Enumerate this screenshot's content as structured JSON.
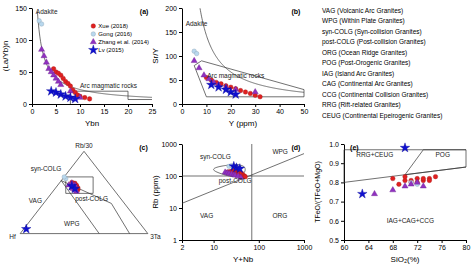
{
  "chart_data": [
    {
      "type": "scatter",
      "title": "(a)",
      "x_label": "Ybn",
      "y_label": "(La/Yb)n",
      "xlim": [
        0,
        25
      ],
      "ylim": [
        0,
        150
      ],
      "xticks": [
        0,
        5,
        10,
        15,
        20,
        25
      ],
      "yticks": [
        0,
        50,
        100,
        150
      ],
      "legend": "upper right",
      "series": [
        {
          "name": "Xue (2018)",
          "color": "#e02020",
          "marker": "circle",
          "x": [
            4.5,
            5.0,
            5.5,
            6.0,
            6.5,
            7.0,
            7.5,
            8.0,
            8.5,
            9.0,
            9.5,
            10.0,
            11.0,
            12.0
          ],
          "values": [
            55,
            50,
            48,
            45,
            40,
            35,
            32,
            28,
            22,
            18,
            14,
            12,
            10,
            8
          ]
        },
        {
          "name": "Gong (2016)",
          "color": "#b8d8ee",
          "marker": "circle",
          "x": [
            1.5,
            2.0
          ],
          "values": [
            130,
            125
          ]
        },
        {
          "name": "Zhang et al. (2014)",
          "color": "#9030c0",
          "marker": "triangle",
          "x": [
            2.0,
            2.5,
            3.0,
            3.5,
            4.0,
            4.5,
            5.0,
            5.5,
            6.0,
            8.0,
            10.0
          ],
          "values": [
            85,
            75,
            65,
            55,
            50,
            45,
            40,
            35,
            30,
            20,
            10
          ]
        },
        {
          "name": "Lv (2015)",
          "color": "#1010d0",
          "marker": "star",
          "x": [
            4.0,
            5.0,
            6.0,
            7.0,
            8.0,
            9.0
          ],
          "values": [
            20,
            18,
            15,
            12,
            10,
            8
          ]
        }
      ],
      "annotations": [
        "Adakite",
        "Arc magmatic rocks"
      ]
    },
    {
      "type": "scatter",
      "title": "(b)",
      "x_label": "Y (ppm)",
      "y_label": "Sr/Y",
      "xlim": [
        0,
        50
      ],
      "ylim": [
        0,
        200
      ],
      "xticks": [
        0,
        10,
        20,
        30,
        40,
        50
      ],
      "yticks": [
        0,
        50,
        100,
        150,
        200
      ],
      "series": [
        {
          "color": "#e02020",
          "marker": "circle",
          "x": [
            10,
            12,
            14,
            16,
            18,
            20,
            22,
            24,
            26,
            28,
            30,
            32
          ],
          "values": [
            55,
            50,
            45,
            42,
            38,
            35,
            32,
            28,
            25,
            22,
            18,
            15
          ]
        },
        {
          "color": "#b8d8ee",
          "marker": "circle",
          "x": [
            5,
            6
          ],
          "values": [
            110,
            105
          ]
        },
        {
          "color": "#9030c0",
          "marker": "triangle",
          "x": [
            5,
            7,
            9,
            11,
            13,
            15,
            18,
            22,
            30
          ],
          "values": [
            90,
            75,
            60,
            52,
            45,
            40,
            35,
            30,
            25
          ]
        },
        {
          "color": "#1010d0",
          "marker": "star",
          "x": [
            12,
            15,
            18,
            20,
            22
          ],
          "values": [
            40,
            35,
            30,
            25,
            20
          ]
        }
      ],
      "annotations": [
        "Adakite",
        "Arc magmatic rocks"
      ]
    },
    {
      "type": "scatter",
      "title": "(c)",
      "tick_labels": false,
      "xlim": [
        0,
        1
      ],
      "ylim": [
        -0.05,
        1.0
      ],
      "series": [
        {
          "color": "#e02020",
          "marker": "circle",
          "x": [
            0.42,
            0.44,
            0.43,
            0.45,
            0.44,
            0.43,
            0.46,
            0.44,
            0.45,
            0.43,
            0.46,
            0.44,
            0.45,
            0.43
          ],
          "values": [
            0.58,
            0.55,
            0.52,
            0.54,
            0.57,
            0.53,
            0.5,
            0.52,
            0.55,
            0.56,
            0.52,
            0.54,
            0.51,
            0.57
          ]
        },
        {
          "color": "#b8d8ee",
          "marker": "circle",
          "x": [
            0.38,
            0.37
          ],
          "values": [
            0.62,
            0.64
          ]
        },
        {
          "color": "#9030c0",
          "marker": "triangle",
          "x": [
            0.4,
            0.42,
            0.44,
            0.43,
            0.45,
            0.44,
            0.42,
            0.43
          ],
          "values": [
            0.55,
            0.52,
            0.5,
            0.53,
            0.48,
            0.55,
            0.57,
            0.51
          ]
        },
        {
          "color": "#1010d0",
          "marker": "star",
          "x": [
            0.42,
            0.44,
            0.12
          ],
          "values": [
            0.54,
            0.51,
            0.07
          ]
        }
      ],
      "annotations": [
        "Rb/30",
        "Hf",
        "3Ta",
        "syn-COLG",
        "VAG",
        "post-COLG",
        "WPG"
      ]
    },
    {
      "type": "scatter",
      "title": "(d)",
      "x_label": "Y+Nb",
      "y_label": "Rb (ppm)",
      "log": true,
      "xlim": [
        2,
        1000
      ],
      "ylim": [
        1,
        1000
      ],
      "xticks": [
        2,
        10,
        100,
        1000
      ],
      "yticks": [
        1,
        10,
        100,
        1000
      ],
      "series": [
        {
          "color": "#e02020",
          "marker": "circle",
          "x": [
            20,
            22,
            25,
            28,
            30,
            32,
            35,
            38,
            40,
            42,
            45,
            48,
            50
          ],
          "values": [
            130,
            135,
            140,
            145,
            150,
            120,
            125,
            130,
            110,
            120,
            105,
            100,
            95
          ]
        },
        {
          "color": "#b8d8ee",
          "marker": "circle",
          "x": [
            22,
            25
          ],
          "values": [
            200,
            210
          ]
        },
        {
          "color": "#9030c0",
          "marker": "triangle",
          "x": [
            18,
            20,
            22,
            25,
            28,
            30,
            35,
            40
          ],
          "values": [
            130,
            125,
            120,
            115,
            110,
            105,
            100,
            90
          ]
        },
        {
          "color": "#1010d0",
          "marker": "star",
          "x": [
            28,
            32,
            38
          ],
          "values": [
            200,
            180,
            170
          ]
        }
      ],
      "annotations": [
        "syn-COLG",
        "WPG",
        "VAG",
        "ORG",
        "post-COLG"
      ]
    },
    {
      "type": "scatter",
      "title": "(e)",
      "x_label": "SiO₂(%)",
      "y_label": "TFeO/(TFeO+MgO)",
      "xlim": [
        60,
        80
      ],
      "ylim": [
        0.5,
        1.0
      ],
      "xticks": [
        60,
        64,
        68,
        72,
        76,
        80
      ],
      "yticks": [
        0.5,
        0.6,
        0.7,
        0.8,
        0.9,
        {
          "value": 1.0,
          "label": "1.0"
        }
      ],
      "series": [
        {
          "color": "#e02020",
          "marker": "circle",
          "x": [
            68,
            70,
            71,
            72,
            73,
            74,
            75,
            69,
            71,
            72,
            73,
            74,
            70
          ],
          "values": [
            0.82,
            0.81,
            0.8,
            0.82,
            0.81,
            0.82,
            0.83,
            0.79,
            0.81,
            0.8,
            0.82,
            0.81,
            0.83
          ]
        },
        {
          "color": "#b8d8ee",
          "marker": "circle",
          "x": [
            71,
            72
          ],
          "values": [
            0.8,
            0.79
          ]
        },
        {
          "color": "#9030c0",
          "marker": "triangle",
          "x": [
            65,
            68,
            70,
            71,
            72,
            73
          ],
          "values": [
            0.74,
            0.76,
            0.78,
            0.79,
            0.8,
            0.78
          ]
        },
        {
          "color": "#1010d0",
          "marker": "star",
          "x": [
            63,
            70
          ],
          "values": [
            0.74,
            0.98
          ]
        }
      ],
      "annotations": [
        "RRG+CEUG",
        "POG",
        "IAG+CAG+CCG"
      ]
    },
    {
      "type": "text",
      "annotations": [
        "VAG (Volcanic Arc Granites)",
        "WPG (Within Plate Granites)",
        "syn-COLG (Syn-collision Granites)",
        "post-COLG (Post-collision Granites)",
        "ORG (Ocean Ridge Granites)",
        "POG (Post-Orogenic Granites)",
        "IAG (Island Arc Granites)",
        "CAG (Continental Arc Granites)",
        "CCG (Continental Collision Granites)",
        "RRG (Rift-related Granites)",
        "CEUG (Continental Epeirogenic Granites)"
      ]
    }
  ]
}
